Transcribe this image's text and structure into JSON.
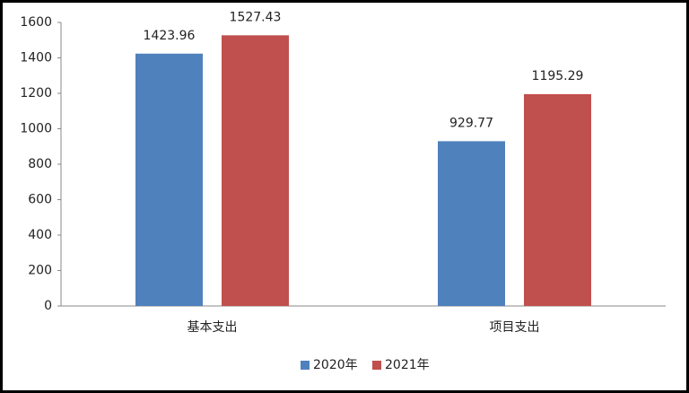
{
  "chart_data": {
    "type": "bar",
    "categories": [
      "基本支出",
      "项目支出"
    ],
    "series": [
      {
        "name": "2020年",
        "color": "#4f81bd",
        "values": [
          1423.96,
          929.77
        ]
      },
      {
        "name": "2021年",
        "color": "#c0504d",
        "values": [
          1527.43,
          1195.29
        ]
      }
    ],
    "ylim": [
      0,
      1600
    ],
    "yticks": [
      0,
      200,
      400,
      600,
      800,
      1000,
      1200,
      1400,
      1600
    ],
    "grid": false,
    "legend": "bottom"
  }
}
